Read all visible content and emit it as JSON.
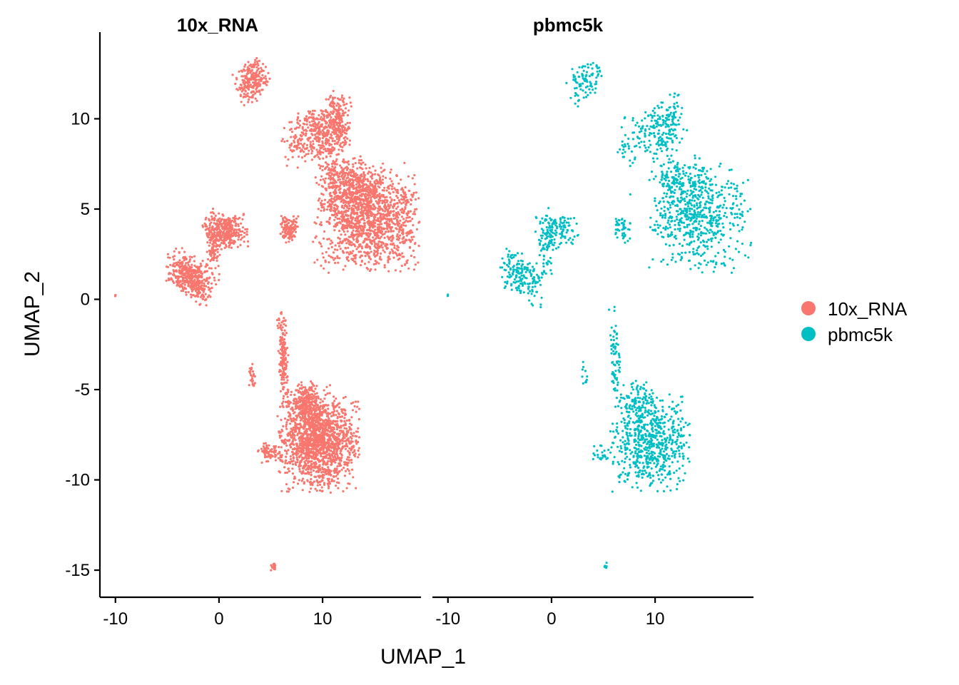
{
  "chart_data": {
    "type": "scatter",
    "xlabel": "UMAP_1",
    "ylabel": "UMAP_2",
    "xlim": [
      -11.5,
      19.5
    ],
    "ylim": [
      -16.5,
      14.8
    ],
    "x_ticks": [
      -10,
      0,
      10
    ],
    "y_ticks": [
      10,
      5,
      0,
      -5,
      -10,
      -15
    ],
    "x_tick_labels": [
      "-10",
      "0",
      "10"
    ],
    "y_tick_labels": [
      "10",
      "5",
      "0",
      "-5",
      "-10",
      "-15"
    ],
    "grid": false,
    "legend": {
      "placement": "right",
      "entries": [
        {
          "label": "10x_RNA",
          "color": "#F8766D"
        },
        {
          "label": "pbmc5k",
          "color": "#00BFC4"
        }
      ]
    },
    "panels": [
      {
        "title": "10x_RNA",
        "series": "10x_RNA",
        "color": "#F8766D",
        "density": 1.0
      },
      {
        "title": "pbmc5k",
        "series": "pbmc5k",
        "color": "#00BFC4",
        "density": 0.42
      }
    ],
    "clusters": [
      {
        "id": "top-left",
        "cx": 3.2,
        "cy": 12.1,
        "sx": 0.8,
        "sy": 0.55,
        "n": 220,
        "tilt": 0.4
      },
      {
        "id": "upper-mid",
        "cx": 9.5,
        "cy": 9.3,
        "sx": 1.6,
        "sy": 0.7,
        "n": 380,
        "tilt": 0.25
      },
      {
        "id": "upper-mid-b",
        "cx": 11.5,
        "cy": 9.8,
        "sx": 0.6,
        "sy": 0.8,
        "n": 150,
        "tilt": 0.0
      },
      {
        "id": "bridge",
        "cx": 11.0,
        "cy": 7.2,
        "sx": 0.7,
        "sy": 1.1,
        "n": 160,
        "tilt": 0.0
      },
      {
        "id": "right-big",
        "cx": 14.5,
        "cy": 4.5,
        "sx": 2.4,
        "sy": 1.4,
        "n": 1300,
        "tilt": 0.0
      },
      {
        "id": "right-top",
        "cx": 13.0,
        "cy": 6.0,
        "sx": 1.1,
        "sy": 0.9,
        "n": 300,
        "tilt": 0.0
      },
      {
        "id": "mid-left",
        "cx": 0.6,
        "cy": 3.8,
        "sx": 1.0,
        "sy": 0.45,
        "n": 300,
        "tilt": 0.0
      },
      {
        "id": "mid-left-b",
        "cx": -0.5,
        "cy": 3.0,
        "sx": 0.35,
        "sy": 1.0,
        "n": 120,
        "tilt": 0.0
      },
      {
        "id": "left",
        "cx": -2.8,
        "cy": 1.3,
        "sx": 1.1,
        "sy": 0.55,
        "n": 420,
        "tilt": -0.35
      },
      {
        "id": "small-mid",
        "cx": 6.8,
        "cy": 3.9,
        "sx": 0.4,
        "sy": 0.35,
        "n": 110,
        "tilt": 0.0
      },
      {
        "id": "tail",
        "cx": 6.2,
        "cy": -3.2,
        "sx": 0.22,
        "sy": 1.3,
        "n": 170,
        "tilt": 0.08
      },
      {
        "id": "lower-big",
        "cx": 9.6,
        "cy": -7.9,
        "sx": 1.8,
        "sy": 1.25,
        "n": 1500,
        "tilt": 0.0
      },
      {
        "id": "lower-top",
        "cx": 8.5,
        "cy": -5.8,
        "sx": 0.9,
        "sy": 0.6,
        "n": 250,
        "tilt": 0.0
      },
      {
        "id": "lower-side",
        "cx": 4.8,
        "cy": -8.5,
        "sx": 0.5,
        "sy": 0.25,
        "n": 60,
        "tilt": 0.0
      },
      {
        "id": "tiny-left",
        "cx": 3.2,
        "cy": -4.2,
        "sx": 0.15,
        "sy": 0.35,
        "n": 25,
        "tilt": 0.0
      },
      {
        "id": "outlier-left",
        "cx": -10.0,
        "cy": 0.2,
        "sx": 0.03,
        "sy": 0.03,
        "n": 3,
        "tilt": 0.0
      },
      {
        "id": "bottom",
        "cx": 5.2,
        "cy": -14.8,
        "sx": 0.12,
        "sy": 0.1,
        "n": 20,
        "tilt": 0.0
      }
    ]
  }
}
